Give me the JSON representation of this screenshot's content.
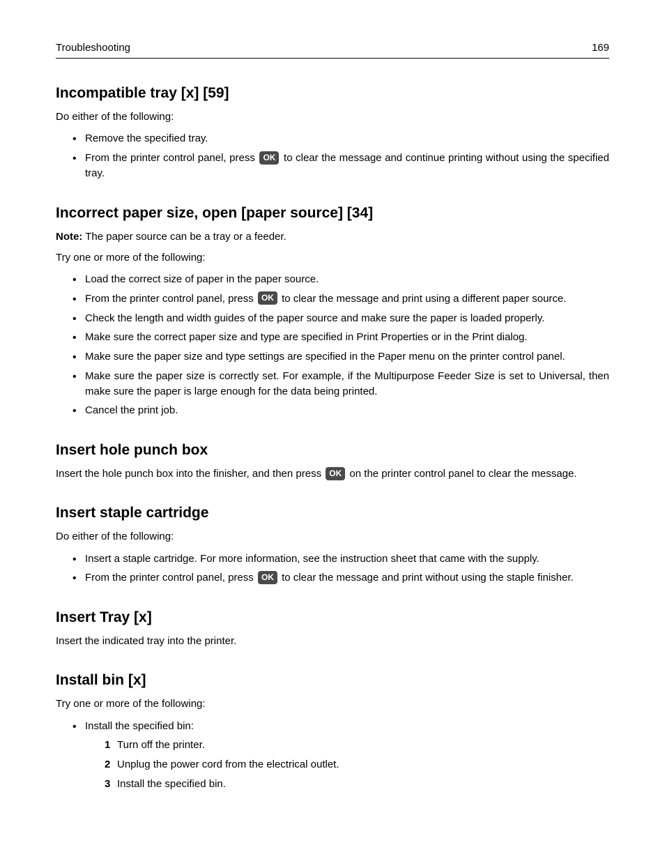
{
  "header": {
    "section": "Troubleshooting",
    "page_number": "169"
  },
  "ok_button_label": "OK",
  "sections": [
    {
      "heading": "Incompatible tray [x] [59]",
      "intro": "Do either of the following:",
      "bullets": {
        "b0": "Remove the specified tray.",
        "b1a": "From the printer control panel, press ",
        "b1b": " to clear the message and continue printing without using the specified tray."
      }
    },
    {
      "heading": "Incorrect paper size, open [paper source] [34]",
      "note_label": "Note:",
      "note_text": " The paper source can be a tray or a feeder.",
      "intro": "Try one or more of the following:",
      "bullets": {
        "b0": "Load the correct size of paper in the paper source.",
        "b1a": "From the printer control panel, press ",
        "b1b": " to clear the message and print using a different paper source.",
        "b2": "Check the length and width guides of the paper source and make sure the paper is loaded properly.",
        "b3": "Make sure the correct paper size and type are specified in Print Properties or in the Print dialog.",
        "b4": "Make sure the paper size and type settings are specified in the Paper menu on the printer control panel.",
        "b5": "Make sure the paper size is correctly set. For example, if the Multipurpose Feeder Size is set to Universal, then make sure the paper is large enough for the data being printed.",
        "b6": "Cancel the print job."
      }
    },
    {
      "heading": "Insert hole punch box",
      "para_a": "Insert the hole punch box into the finisher, and then press ",
      "para_b": " on the printer control panel to clear the message."
    },
    {
      "heading": "Insert staple cartridge",
      "intro": "Do either of the following:",
      "bullets": {
        "b0": "Insert a staple cartridge. For more information, see the instruction sheet that came with the supply.",
        "b1a": "From the printer control panel, press ",
        "b1b": " to clear the message and print without using the staple finisher."
      }
    },
    {
      "heading": "Insert Tray [x]",
      "para": "Insert the indicated tray into the printer."
    },
    {
      "heading": "Install bin [x]",
      "intro": "Try one or more of the following:",
      "bullets": {
        "b0": "Install the specified bin:",
        "steps": {
          "s0": "Turn off the printer.",
          "s1": "Unplug the power cord from the electrical outlet.",
          "s2": "Install the specified bin."
        }
      }
    }
  ]
}
